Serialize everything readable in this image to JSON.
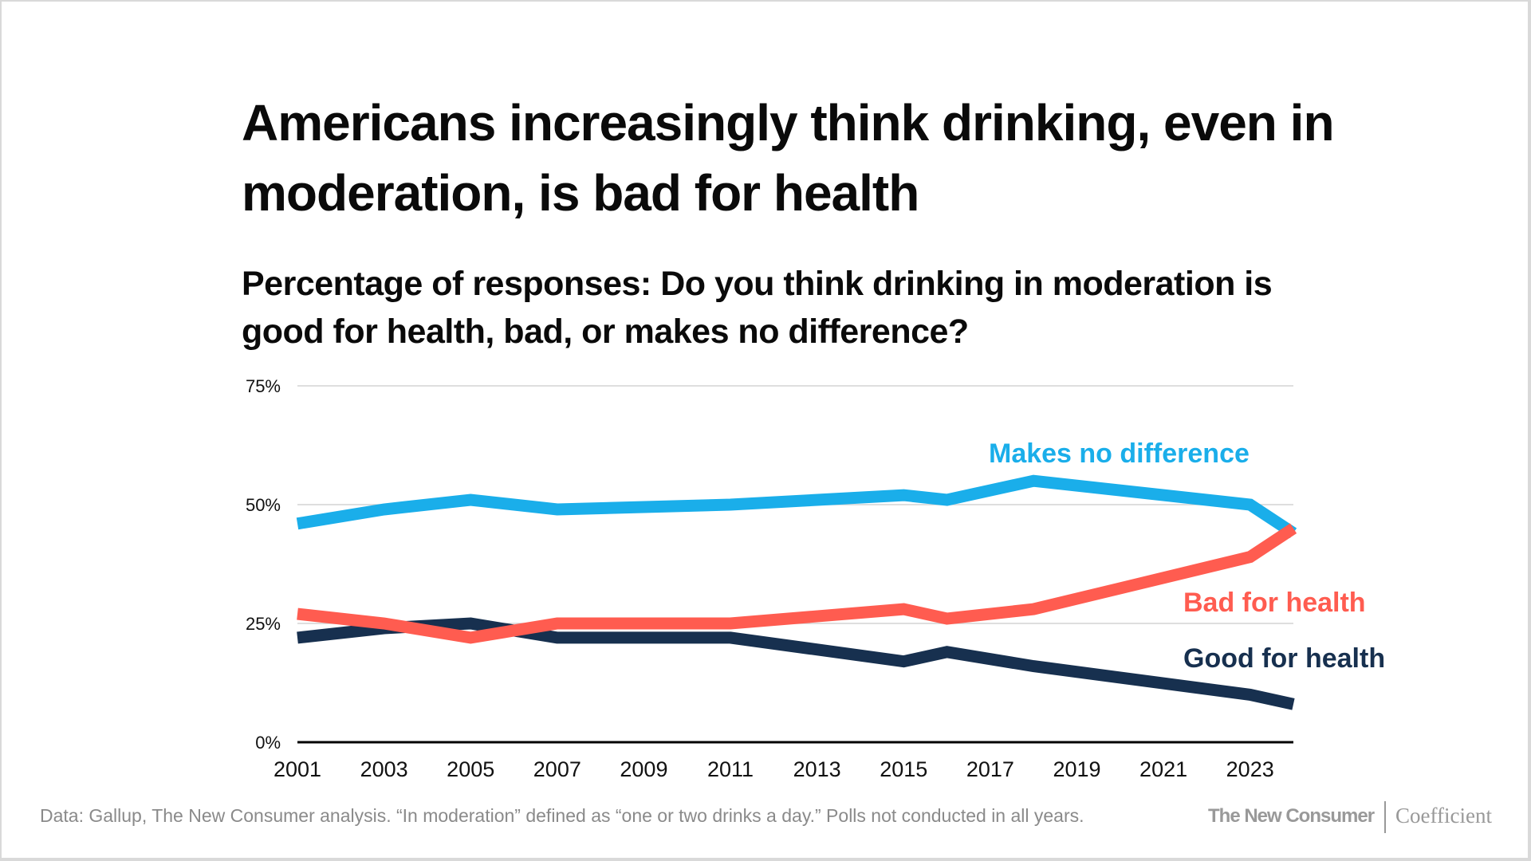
{
  "title": "Americans increasingly think drinking, even in moderation, is bad for health",
  "subtitle": "Percentage of responses: Do you think drinking in moderation is good for health, bad, or makes no difference?",
  "footer": {
    "note": "Data: Gallup, The New Consumer analysis. “In moderation” defined as “one or two drinks a day.” Polls not conducted in all years.",
    "logo_primary": "The New Consumer",
    "logo_secondary": "Coefficient"
  },
  "chart_data": {
    "type": "line",
    "title": "Americans increasingly think drinking, even in moderation, is bad for health",
    "subtitle": "Percentage of responses: Do you think drinking in moderation is good for health, bad, or makes no difference?",
    "xlabel": "",
    "ylabel": "",
    "xlim": [
      2001,
      2024
    ],
    "ylim": [
      0,
      75
    ],
    "x_ticks": [
      2001,
      2003,
      2005,
      2007,
      2009,
      2011,
      2013,
      2015,
      2017,
      2019,
      2021,
      2023
    ],
    "y_ticks": [
      0,
      25,
      50,
      75
    ],
    "y_tick_labels": [
      "0%",
      "25%",
      "50%",
      "75%"
    ],
    "grid": "horizontal",
    "legend": "direct labels at right end of lines",
    "x": [
      2001,
      2003,
      2005,
      2007,
      2011,
      2015,
      2016,
      2018,
      2023,
      2024
    ],
    "series": [
      {
        "name": "Makes no difference",
        "color": "#1aaeea",
        "values": [
          46,
          49,
          51,
          49,
          50,
          52,
          51,
          55,
          50,
          44
        ]
      },
      {
        "name": "Bad for health",
        "color": "#ff5c50",
        "values": [
          27,
          25,
          22,
          25,
          25,
          28,
          26,
          28,
          39,
          45
        ]
      },
      {
        "name": "Good for health",
        "color": "#17304f",
        "values": [
          22,
          24,
          25,
          22,
          22,
          17,
          19,
          16,
          10,
          8
        ]
      }
    ]
  }
}
